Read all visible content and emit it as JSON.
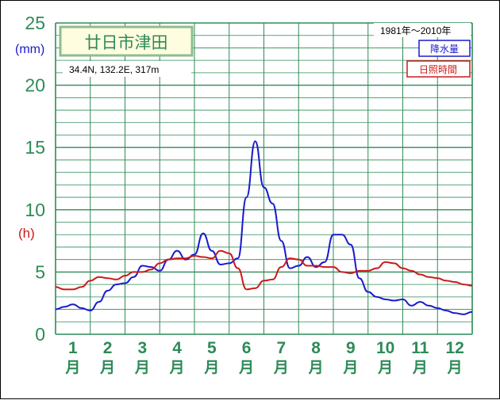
{
  "chart_data": {
    "type": "line",
    "title": "廿日市津田",
    "location": "34.4N,  132.2E,  317m",
    "period": "1981年〜2010年",
    "y_unit_left": "(mm)",
    "y_unit_right": "(h)",
    "ylim": [
      0,
      25
    ],
    "yticks": [
      "0",
      "5",
      "10",
      "15",
      "20",
      "25"
    ],
    "month_numbers": [
      "1",
      "2",
      "3",
      "4",
      "5",
      "6",
      "7",
      "8",
      "9",
      "10",
      "11",
      "12"
    ],
    "month_suffix": "月",
    "legend": [
      {
        "label": "降水量",
        "color": "#1a1acc"
      },
      {
        "label": "日照時間",
        "color": "#cc1a1a"
      }
    ],
    "grid": true,
    "series": [
      {
        "name": "降水量",
        "color": "#1a1acc",
        "x": [
          0.0,
          0.25,
          0.5,
          0.75,
          1.0,
          1.25,
          1.5,
          1.75,
          2.0,
          2.25,
          2.5,
          2.75,
          3.0,
          3.25,
          3.5,
          3.75,
          4.0,
          4.25,
          4.5,
          4.75,
          5.0,
          5.25,
          5.5,
          5.75,
          6.0,
          6.25,
          6.5,
          6.75,
          7.0,
          7.25,
          7.5,
          7.75,
          8.0,
          8.25,
          8.5,
          8.75,
          9.0,
          9.25,
          9.5,
          9.75,
          10.0,
          10.25,
          10.5,
          10.75,
          11.0,
          11.25,
          11.5,
          11.75,
          12.0
        ],
        "values": [
          2.0,
          2.2,
          2.4,
          2.1,
          1.9,
          2.6,
          3.5,
          4.0,
          4.1,
          4.6,
          5.5,
          5.4,
          5.1,
          6.0,
          6.7,
          6.0,
          6.4,
          8.1,
          6.7,
          5.6,
          5.7,
          6.1,
          11.0,
          15.5,
          11.8,
          10.5,
          7.5,
          5.3,
          5.5,
          6.2,
          5.4,
          5.8,
          8.0,
          8.0,
          7.2,
          4.5,
          3.4,
          3.0,
          2.8,
          2.7,
          2.8,
          2.3,
          2.6,
          2.3,
          2.1,
          1.9,
          1.7,
          1.6,
          1.8
        ]
      },
      {
        "name": "日照時間",
        "color": "#cc1a1a",
        "x": [
          0.0,
          0.25,
          0.5,
          0.75,
          1.0,
          1.25,
          1.5,
          1.75,
          2.0,
          2.25,
          2.5,
          2.75,
          3.0,
          3.25,
          3.5,
          3.75,
          4.0,
          4.25,
          4.5,
          4.75,
          5.0,
          5.25,
          5.5,
          5.75,
          6.0,
          6.25,
          6.5,
          6.75,
          7.0,
          7.25,
          7.5,
          7.75,
          8.0,
          8.25,
          8.5,
          8.75,
          9.0,
          9.25,
          9.5,
          9.75,
          10.0,
          10.25,
          10.5,
          10.75,
          11.0,
          11.25,
          11.5,
          11.75,
          12.0
        ],
        "values": [
          3.8,
          3.6,
          3.6,
          3.8,
          4.3,
          4.6,
          4.5,
          4.4,
          4.7,
          5.0,
          5.0,
          5.2,
          5.7,
          6.0,
          6.1,
          6.1,
          6.3,
          6.2,
          6.1,
          6.7,
          6.5,
          5.3,
          3.6,
          3.7,
          4.3,
          4.4,
          5.4,
          6.1,
          6.0,
          5.5,
          5.5,
          5.4,
          5.4,
          5.0,
          4.9,
          5.1,
          5.1,
          5.3,
          5.8,
          5.7,
          5.3,
          5.1,
          4.8,
          4.6,
          4.5,
          4.3,
          4.2,
          4.0,
          3.9
        ]
      }
    ]
  }
}
